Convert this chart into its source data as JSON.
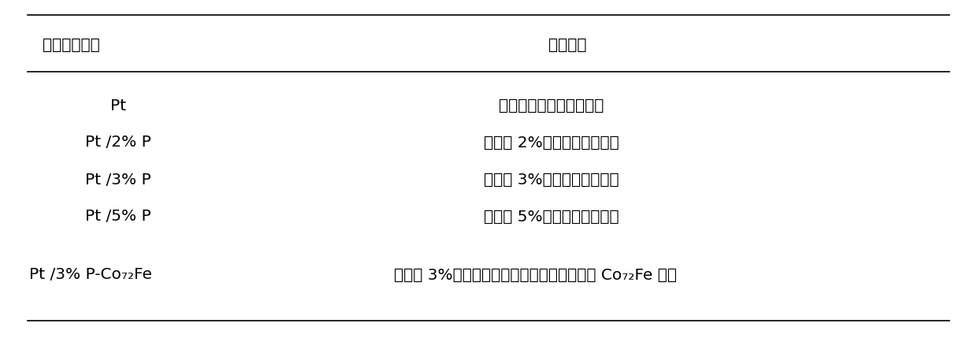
{
  "header_col1": "电极标记方式",
  "header_col2": "电极材质",
  "rows": [
    [
      "Pt",
      "不掺杂其他物质的铂单质"
    ],
    [
      "Pt /2% P",
      "掺杂了 2%的磷单质的铂单质"
    ],
    [
      "Pt /3% P",
      "掺杂了 3%的磷单质的铂单质"
    ],
    [
      "Pt /5% P",
      "掺杂了 5%的磷单质的铂单质"
    ],
    [
      "Pt /3% P-Co₇₂Fe",
      "掺杂了 3%的磷单质的铂单质，电极表面镀有 Co₇₂Fe 合金"
    ]
  ],
  "background_color": "#ffffff",
  "text_color": "#000000",
  "line_color": "#000000",
  "fig_width": 12.4,
  "fig_height": 4.29,
  "dpi": 100
}
